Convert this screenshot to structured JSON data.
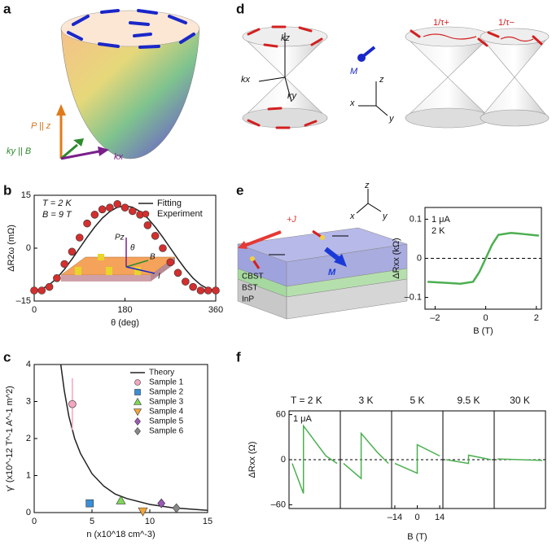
{
  "panel_labels": [
    "a",
    "b",
    "c",
    "d",
    "e",
    "f"
  ],
  "panel_a": {
    "labels": [
      "P || z",
      "ky || B",
      "kx"
    ]
  },
  "panel_d": {
    "labels": [
      "kz",
      "kx",
      "ky",
      "M",
      "z",
      "x",
      "y",
      "1/τ+",
      "1/τ−"
    ]
  },
  "panel_e": {
    "labels": [
      "z",
      "x",
      "y",
      "+J",
      "M",
      "CBST",
      "BST",
      "InP"
    ]
  },
  "chart_data": [
    {
      "type": "scatter",
      "annotations": [
        "T = 2 K",
        "B = 9 T"
      ],
      "xlabel": "θ (deg)",
      "ylabel": "ΔR2ω (mΩ)",
      "xlim": [
        0,
        360
      ],
      "xticks": [
        0,
        180,
        360
      ],
      "ylim": [
        -15,
        15
      ],
      "yticks": [
        {
          "value": -15,
          "label": "–15"
        },
        0,
        15
      ],
      "inset_labels": [
        "Pz",
        "θ",
        "B",
        "I"
      ],
      "series": [
        {
          "name": "Fitting",
          "type": "line",
          "color": "#222222",
          "x": [
            0,
            15,
            30,
            45,
            60,
            75,
            90,
            105,
            120,
            135,
            150,
            165,
            180,
            195,
            210,
            225,
            240,
            255,
            270,
            285,
            300,
            315,
            330,
            345,
            360
          ],
          "values": [
            -12,
            -11.6,
            -10.4,
            -8.5,
            -6,
            -3.1,
            0,
            3.1,
            6,
            8.5,
            10.4,
            11.6,
            12,
            11.6,
            10.4,
            8.5,
            6,
            3.1,
            0,
            -3.1,
            -6,
            -8.5,
            -10.4,
            -11.6,
            -12
          ]
        },
        {
          "name": "Experiment",
          "type": "scatter",
          "color": "#d32f2f",
          "x": [
            0,
            15,
            30,
            45,
            60,
            75,
            90,
            105,
            120,
            135,
            150,
            165,
            180,
            195,
            210,
            225,
            240,
            255,
            270,
            285,
            300,
            315,
            330,
            345,
            360
          ],
          "values": [
            -12,
            -12,
            -11,
            -8.5,
            -4.5,
            -1,
            3,
            7,
            9.5,
            11,
            11.5,
            12.5,
            11.5,
            10.5,
            9.5,
            6.5,
            3.5,
            0,
            -4,
            -7,
            -9.5,
            -11,
            -12,
            -12,
            -12
          ]
        }
      ]
    },
    {
      "type": "scatter",
      "xlabel": "n (x10^18 cm^-3)",
      "ylabel": "γ' (x10^-12 T^-1 A^-1 m^2)",
      "xlim": [
        0,
        15
      ],
      "xticks": [
        0,
        5,
        10,
        15
      ],
      "ylim": [
        0,
        4
      ],
      "yticks": [
        0,
        1,
        2,
        3,
        4
      ],
      "series": [
        {
          "name": "Theory",
          "type": "line",
          "color": "#222222",
          "x": [
            2.3,
            2.6,
            3,
            3.5,
            4,
            5,
            6,
            7,
            8,
            10,
            12,
            15
          ],
          "values": [
            4,
            3.3,
            2.6,
            2,
            1.6,
            1.05,
            0.72,
            0.5,
            0.38,
            0.22,
            0.13,
            0.06
          ]
        },
        {
          "name": "Sample 1",
          "type": "scatter",
          "marker": "circle",
          "color": "#f4a6c0",
          "x": [
            3.3
          ],
          "values": [
            2.93
          ],
          "errors": [
            0.7
          ]
        },
        {
          "name": "Sample 2",
          "type": "scatter",
          "marker": "square",
          "color": "#3a8fd6",
          "x": [
            4.8
          ],
          "values": [
            0.25
          ]
        },
        {
          "name": "Sample 3",
          "type": "scatter",
          "marker": "triangle",
          "color": "#7ed957",
          "x": [
            7.5
          ],
          "values": [
            0.33
          ]
        },
        {
          "name": "Sample 4",
          "type": "scatter",
          "marker": "triangle-down",
          "color": "#f2a63a",
          "x": [
            9.4
          ],
          "values": [
            0.03
          ]
        },
        {
          "name": "Sample 5",
          "type": "scatter",
          "marker": "diamond",
          "color": "#9b59b6",
          "x": [
            11
          ],
          "values": [
            0.25
          ]
        },
        {
          "name": "Sample 6",
          "type": "scatter",
          "marker": "diamond",
          "color": "#888888",
          "x": [
            12.3
          ],
          "values": [
            0.12
          ]
        }
      ]
    },
    {
      "type": "line",
      "annotations": [
        "1 μA",
        "2 K"
      ],
      "xlabel": "B (T)",
      "ylabel": "ΔRxx (kΩ)",
      "xlim": [
        -2.4,
        2.2
      ],
      "xticks": [
        {
          "value": -2,
          "label": "–2"
        },
        0,
        2
      ],
      "ylim": [
        -0.13,
        0.13
      ],
      "yticks": [
        {
          "value": -0.1,
          "label": "–0.1"
        },
        0,
        0.1
      ],
      "series": [
        {
          "name": "ΔRxx",
          "color": "#4caf50",
          "x": [
            -2.3,
            -1.5,
            -1,
            -0.5,
            -0.25,
            0,
            0.25,
            0.5,
            1,
            1.5,
            2.1
          ],
          "values": [
            -0.06,
            -0.063,
            -0.065,
            -0.06,
            -0.035,
            0,
            0.035,
            0.06,
            0.065,
            0.062,
            0.058
          ]
        }
      ]
    },
    {
      "type": "line",
      "annotations": [
        "1 μA"
      ],
      "xlabel": "B (T)",
      "ylabel": "ΔRxx (Ω)",
      "color": "#4caf50",
      "xlim": [
        -16,
        16
      ],
      "xticks": [
        {
          "value": -14,
          "label": "–14"
        },
        0,
        14
      ],
      "ylim": [
        -65,
        65
      ],
      "yticks": [
        60,
        0,
        {
          "value": -60,
          "label": "–60"
        }
      ],
      "panels": [
        {
          "label": "T = 2 K",
          "x": [
            -14,
            -7,
            -7,
            0,
            7,
            14
          ],
          "values": [
            -5,
            -45,
            45,
            25,
            5,
            -5
          ]
        },
        {
          "label": "3 K",
          "x": [
            -14,
            -3,
            -3,
            7,
            14
          ],
          "values": [
            -5,
            -25,
            35,
            10,
            -5
          ]
        },
        {
          "label": "5 K",
          "x": [
            -14,
            0,
            0,
            14
          ],
          "values": [
            -5,
            -18,
            20,
            5
          ]
        },
        {
          "label": "9.5 K",
          "x": [
            -14,
            0,
            0,
            14
          ],
          "values": [
            0,
            -5,
            6,
            0
          ]
        },
        {
          "label": "30 K",
          "x": [
            -14,
            14
          ],
          "values": [
            1,
            -1
          ]
        }
      ]
    }
  ]
}
